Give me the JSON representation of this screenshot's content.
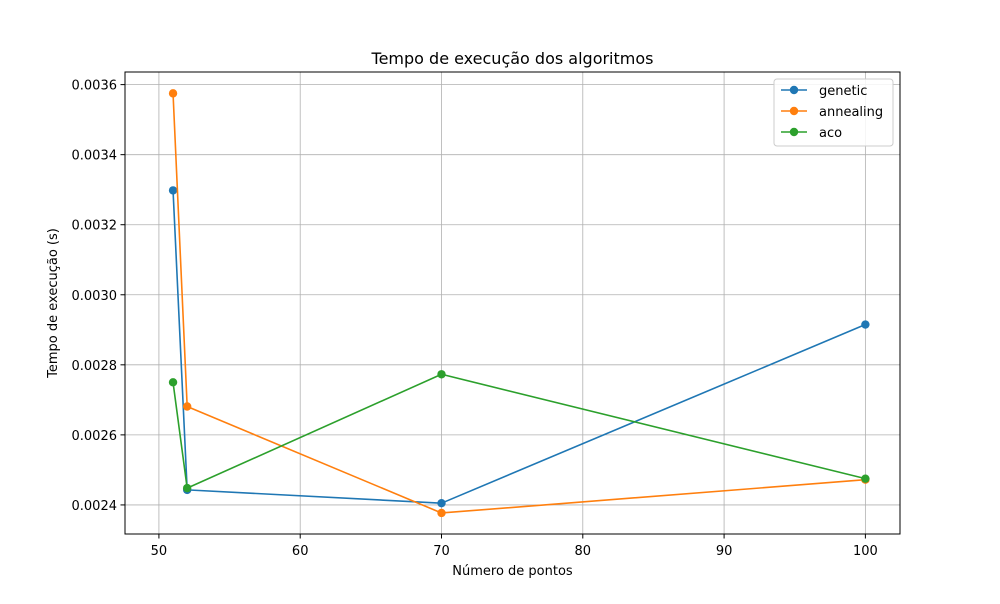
{
  "chart_data": {
    "type": "line",
    "title": "Tempo de execução dos algoritmos",
    "xlabel": "Número de pontos",
    "ylabel": "Tempo de execução (s)",
    "xlim": [
      47.6,
      102.45
    ],
    "ylim": [
      0.002317,
      0.003636
    ],
    "x_ticks": [
      50,
      60,
      70,
      80,
      90,
      100
    ],
    "y_ticks": [
      0.0024,
      0.0026,
      0.0028,
      0.003,
      0.0032,
      0.0034,
      0.0036
    ],
    "grid": true,
    "legend_position": "top-right",
    "series": [
      {
        "name": "genetic",
        "color": "#1f77b4",
        "points": [
          [
            51,
            0.003298
          ],
          [
            52,
            0.002443
          ],
          [
            70,
            0.002405
          ],
          [
            100,
            0.002915
          ]
        ]
      },
      {
        "name": "annealing",
        "color": "#ff7f0e",
        "points": [
          [
            51,
            0.003575
          ],
          [
            52,
            0.002681
          ],
          [
            70,
            0.002377
          ],
          [
            100,
            0.002472
          ]
        ]
      },
      {
        "name": "aco",
        "color": "#2ca02c",
        "points": [
          [
            51,
            0.00275
          ],
          [
            52,
            0.002448
          ],
          [
            70,
            0.002773
          ],
          [
            100,
            0.002475
          ]
        ]
      }
    ]
  }
}
